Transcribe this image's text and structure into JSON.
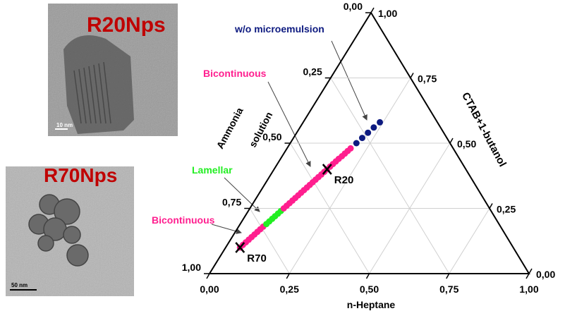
{
  "chart_data": {
    "type": "ternary",
    "xlabel": "n-Heptane",
    "left_label": [
      "Ammonia",
      "solution"
    ],
    "right_label": "CTAB+1-butanol",
    "xticks": [
      {
        "value": 0,
        "label": "0,00"
      },
      {
        "value": 0.25,
        "label": "0,25"
      },
      {
        "value": 0.5,
        "label": "0,50"
      },
      {
        "value": 0.75,
        "label": "0,75"
      },
      {
        "value": 1,
        "label": "1,00"
      }
    ],
    "left_ticks": [
      {
        "value": 0,
        "label": "0,00"
      },
      {
        "value": 0.25,
        "label": "0,25"
      },
      {
        "value": 0.5,
        "label": "0,50"
      },
      {
        "value": 0.75,
        "label": "0,75"
      },
      {
        "value": 1,
        "label": "1,00"
      }
    ],
    "right_ticks": [
      {
        "value": 0,
        "label": "0,00"
      },
      {
        "value": 0.25,
        "label": "0,25"
      },
      {
        "value": 0.5,
        "label": "0,50"
      },
      {
        "value": 0.75,
        "label": "0,75"
      },
      {
        "value": 1,
        "label": "1,00"
      }
    ],
    "grid": true,
    "series": [
      {
        "name": "Bicontinuous",
        "color": "#ff1f8f",
        "heptane": [
          0.045,
          0.049,
          0.053,
          0.057,
          0.061,
          0.065,
          0.069,
          0.073,
          0.077
        ],
        "ctab": [
          0.1,
          0.11,
          0.12,
          0.13,
          0.14,
          0.15,
          0.16,
          0.17,
          0.18
        ]
      },
      {
        "name": "Lamellar",
        "color": "#22ee22",
        "heptane": [
          0.082,
          0.086,
          0.09,
          0.094,
          0.098,
          0.102
        ],
        "ctab": [
          0.19,
          0.2,
          0.21,
          0.22,
          0.23,
          0.24
        ]
      },
      {
        "name": "Bicontinuous",
        "color": "#ff1f8f",
        "heptane": [
          0.106,
          0.11,
          0.114,
          0.118,
          0.122,
          0.126,
          0.13,
          0.134,
          0.138,
          0.142,
          0.146,
          0.15,
          0.154,
          0.158,
          0.162,
          0.166,
          0.17,
          0.174,
          0.178,
          0.182,
          0.187,
          0.191,
          0.195,
          0.199
        ],
        "ctab": [
          0.25,
          0.26,
          0.27,
          0.28,
          0.29,
          0.3,
          0.31,
          0.32,
          0.33,
          0.34,
          0.35,
          0.36,
          0.37,
          0.38,
          0.39,
          0.4,
          0.41,
          0.42,
          0.43,
          0.44,
          0.45,
          0.46,
          0.47,
          0.48
        ]
      },
      {
        "name": "w/o microemulsion",
        "color": "#0d1a80",
        "heptane": [
          0.207,
          0.215,
          0.223,
          0.231,
          0.24
        ],
        "ctab": [
          0.5,
          0.52,
          0.54,
          0.56,
          0.58
        ]
      }
    ],
    "markers": [
      {
        "label": "R20",
        "heptane": 0.166,
        "ctab": 0.4
      },
      {
        "label": "R70",
        "heptane": 0.045,
        "ctab": 0.1
      }
    ],
    "images": [
      {
        "label": "R20Nps",
        "scale": "10 nm"
      },
      {
        "label": "R70Nps",
        "scale": "50 nm"
      }
    ]
  }
}
